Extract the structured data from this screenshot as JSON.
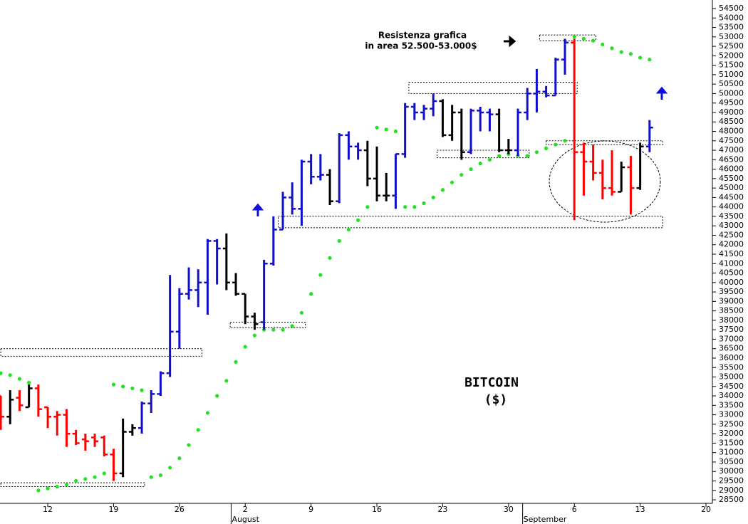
{
  "chart_data": {
    "type": "ohlc",
    "annotations": [
      "Resistenza grafica",
      "in area 52.500-53.000$"
    ],
    "title": "BITCOIN",
    "subtitle": "($)",
    "xlim": [
      6.92,
      82.68
    ],
    "ylim": [
      28313,
      54952
    ],
    "xticks": [
      12,
      19,
      26,
      {
        "value": 33,
        "label": "2"
      },
      {
        "value": 40,
        "label": "9"
      },
      {
        "value": 47,
        "label": "16"
      },
      {
        "value": 54,
        "label": "23"
      },
      {
        "value": 61,
        "label": "30"
      },
      {
        "value": 68,
        "label": "6"
      },
      {
        "value": 75,
        "label": "13"
      },
      {
        "value": 82,
        "label": "20"
      }
    ],
    "months": [
      {
        "value": 31.5,
        "label": "August"
      },
      {
        "value": 62.5,
        "label": "September"
      }
    ],
    "yticks": [
      28500,
      29000,
      29500,
      30000,
      30500,
      31000,
      31500,
      32000,
      32500,
      33000,
      33500,
      34000,
      34500,
      35000,
      35500,
      36000,
      36500,
      37000,
      37500,
      38000,
      38500,
      39000,
      39500,
      40000,
      40500,
      41000,
      41500,
      42000,
      42500,
      43000,
      43500,
      44000,
      44500,
      45000,
      45500,
      46000,
      46500,
      47000,
      47500,
      48000,
      48500,
      49000,
      49500,
      50000,
      50500,
      51000,
      51500,
      52000,
      52500,
      53000,
      53500,
      54000,
      54500
    ],
    "x": [
      7,
      8,
      9,
      10,
      11,
      12,
      13,
      14,
      15,
      16,
      17,
      18,
      19,
      20,
      21,
      22,
      23,
      24,
      25,
      26,
      27,
      28,
      29,
      30,
      31,
      32,
      33,
      34,
      35,
      36,
      37,
      38,
      39,
      40,
      41,
      42,
      43,
      44,
      45,
      46,
      47,
      48,
      49,
      50,
      51,
      52,
      53,
      54,
      55,
      56,
      57,
      58,
      59,
      60,
      61,
      62,
      63,
      64,
      65,
      66,
      67,
      68,
      69,
      70,
      71,
      72,
      73,
      74,
      75,
      76
    ],
    "open": [
      34000,
      32900,
      33900,
      33400,
      34400,
      33400,
      32900,
      33000,
      32000,
      31700,
      31800,
      31800,
      30900,
      29900,
      32100,
      32300,
      33600,
      34100,
      35200,
      37400,
      39400,
      39600,
      40000,
      42200,
      41800,
      40000,
      39400,
      38200,
      37900,
      41000,
      42800,
      44500,
      43900,
      46400,
      45600,
      45700,
      44300,
      47800,
      47200,
      47000,
      45500,
      44600,
      44600,
      46800,
      49300,
      49000,
      49200,
      49600,
      47800,
      49000,
      46900,
      49100,
      49000,
      48900,
      47000,
      47000,
      49000,
      50000,
      50100,
      49900,
      51800,
      52700,
      46900,
      46400,
      45800,
      45000,
      44800,
      46100,
      45000,
      47200
    ],
    "high": [
      34000,
      34300,
      34300,
      34600,
      34600,
      33400,
      33200,
      33300,
      32200,
      32000,
      32000,
      31900,
      31200,
      32800,
      32500,
      33700,
      34300,
      35300,
      40400,
      39700,
      40800,
      40700,
      42300,
      42300,
      42600,
      40500,
      39400,
      38400,
      41200,
      43500,
      44800,
      45300,
      46500,
      46800,
      46800,
      46000,
      47900,
      48000,
      47400,
      47500,
      47200,
      45800,
      46800,
      49500,
      49500,
      49400,
      50000,
      49700,
      49400,
      49200,
      49200,
      49300,
      49200,
      49200,
      47600,
      49200,
      50300,
      51300,
      50400,
      51900,
      52900,
      52900,
      47400,
      47300,
      46500,
      47000,
      46400,
      46700,
      47400,
      48600
    ],
    "low": [
      32200,
      32500,
      33200,
      33400,
      32900,
      32300,
      31900,
      31300,
      31400,
      31100,
      31300,
      30800,
      29500,
      29700,
      31900,
      32000,
      33100,
      34000,
      35000,
      36500,
      39100,
      38700,
      38300,
      39900,
      39600,
      39300,
      37800,
      37500,
      37500,
      40900,
      42800,
      43600,
      43000,
      45200,
      45400,
      44100,
      44200,
      46500,
      46500,
      45100,
      44300,
      44300,
      43900,
      46600,
      48600,
      48600,
      48800,
      47700,
      47500,
      46500,
      46800,
      48000,
      48000,
      46900,
      46800,
      46700,
      48600,
      49000,
      49800,
      49900,
      51000,
      43300,
      44600,
      45400,
      44400,
      44600,
      44800,
      43600,
      44900,
      46900
    ],
    "close": [
      32900,
      33800,
      33500,
      34400,
      33300,
      32900,
      33000,
      32000,
      31500,
      31600,
      31600,
      30900,
      29900,
      32100,
      32300,
      33600,
      34100,
      35200,
      37400,
      39400,
      39600,
      40000,
      42200,
      41800,
      40000,
      39400,
      38200,
      37800,
      41000,
      42800,
      44500,
      43900,
      46400,
      45600,
      45700,
      44300,
      47800,
      47200,
      47000,
      45500,
      44600,
      44600,
      46800,
      49300,
      49000,
      49200,
      49600,
      47800,
      49000,
      46900,
      49100,
      49000,
      48900,
      47000,
      47000,
      49000,
      50000,
      50100,
      49900,
      51800,
      52700,
      46900,
      46400,
      45800,
      45000,
      44800,
      46100,
      45000,
      47200,
      48200
    ],
    "colors": [
      "#ff0000",
      "#000000",
      "#ff0000",
      "#000000",
      "#ff0000",
      "#ff0000",
      "#ff0000",
      "#ff0000",
      "#ff0000",
      "#ff0000",
      "#ff0000",
      "#ff0000",
      "#ff0000",
      "#000000",
      "#000000",
      "#1010cc",
      "#1010cc",
      "#1010cc",
      "#1010cc",
      "#1010cc",
      "#1010cc",
      "#1010cc",
      "#1010cc",
      "#1010cc",
      "#000000",
      "#000000",
      "#000000",
      "#000000",
      "#1010cc",
      "#1010cc",
      "#1010cc",
      "#1010cc",
      "#1010cc",
      "#1010cc",
      "#1010cc",
      "#000000",
      "#1010cc",
      "#1010cc",
      "#1010cc",
      "#000000",
      "#000000",
      "#000000",
      "#1010cc",
      "#1010cc",
      "#1010cc",
      "#1010cc",
      "#1010cc",
      "#000000",
      "#000000",
      "#000000",
      "#1010cc",
      "#1010cc",
      "#1010cc",
      "#000000",
      "#000000",
      "#1010cc",
      "#1010cc",
      "#1010cc",
      "#1010cc",
      "#1010cc",
      "#1010cc",
      "#ff0000",
      "#ff0000",
      "#ff0000",
      "#ff0000",
      "#ff0000",
      "#000000",
      "#ff0000",
      "#000000",
      "#1010cc"
    ],
    "sar": {
      "color": "#22e022",
      "values": [
        35200,
        35100,
        34900,
        34700,
        29000,
        29100,
        29200,
        29300,
        29500,
        29600,
        29700,
        29900,
        34600,
        34500,
        34400,
        34300,
        29700,
        29800,
        30200,
        30700,
        31400,
        32200,
        33100,
        34000,
        34800,
        35800,
        36600,
        37200,
        37500,
        37500,
        37500,
        37700,
        38400,
        39400,
        40400,
        41300,
        42200,
        42800,
        43300,
        44000,
        48200,
        48100,
        48000,
        44000,
        44000,
        44200,
        44500,
        44900,
        45300,
        45700,
        46000,
        46300,
        46500,
        46700,
        46800,
        46700,
        46700,
        46900,
        47100,
        47300,
        47500,
        53000,
        52900,
        52800,
        52600,
        52400,
        52200,
        52100,
        51900,
        51800
      ]
    },
    "boxes": [
      {
        "x": [
          7,
          28.4
        ],
        "y": [
          36100,
          36500
        ]
      },
      {
        "x": [
          7,
          22.3
        ],
        "y": [
          29200,
          29400
        ]
      },
      {
        "x": [
          31.4,
          39.4
        ],
        "y": [
          37600,
          37900
        ]
      },
      {
        "x": [
          36.5,
          77.4
        ],
        "y": [
          42900,
          43500
        ]
      },
      {
        "x": [
          50.4,
          68.3
        ],
        "y": [
          50000,
          50600
        ]
      },
      {
        "x": [
          53.4,
          63.2
        ],
        "y": [
          46600,
          47000
        ]
      },
      {
        "x": [
          64.3,
          70.3
        ],
        "y": [
          52800,
          53100
        ]
      },
      {
        "x": [
          65,
          77.4
        ],
        "y": [
          47300,
          47500
        ]
      }
    ]
  }
}
